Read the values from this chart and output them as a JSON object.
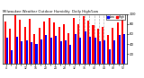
{
  "title": "Milwaukee Weather Outdoor Humidity  Daily High/Low",
  "high_color": "#ff0000",
  "low_color": "#0000ff",
  "background_color": "#ffffff",
  "ylim": [
    0,
    100
  ],
  "ytick_labels": [
    "20",
    "40",
    "60",
    "80",
    "100"
  ],
  "ytick_values": [
    20,
    40,
    60,
    80,
    100
  ],
  "legend_high": "High",
  "legend_low": "Low",
  "dashed_indices": [
    15,
    16,
    17,
    18,
    19,
    20
  ],
  "xlabels": [
    "4",
    "",
    "8",
    "",
    "12",
    "",
    "16",
    "",
    "20",
    "",
    "24",
    "",
    "28",
    "",
    "32",
    "",
    "36",
    "",
    "40",
    "",
    "44",
    "",
    "48",
    "",
    "52"
  ],
  "highs": [
    85,
    70,
    97,
    88,
    75,
    90,
    60,
    72,
    85,
    92,
    83,
    74,
    80,
    62,
    92,
    80,
    95,
    87,
    78,
    70,
    75,
    58,
    72,
    83,
    88
  ],
  "lows": [
    52,
    28,
    55,
    46,
    48,
    43,
    40,
    50,
    58,
    52,
    56,
    46,
    48,
    38,
    60,
    52,
    65,
    55,
    52,
    46,
    48,
    30,
    48,
    58,
    60
  ]
}
